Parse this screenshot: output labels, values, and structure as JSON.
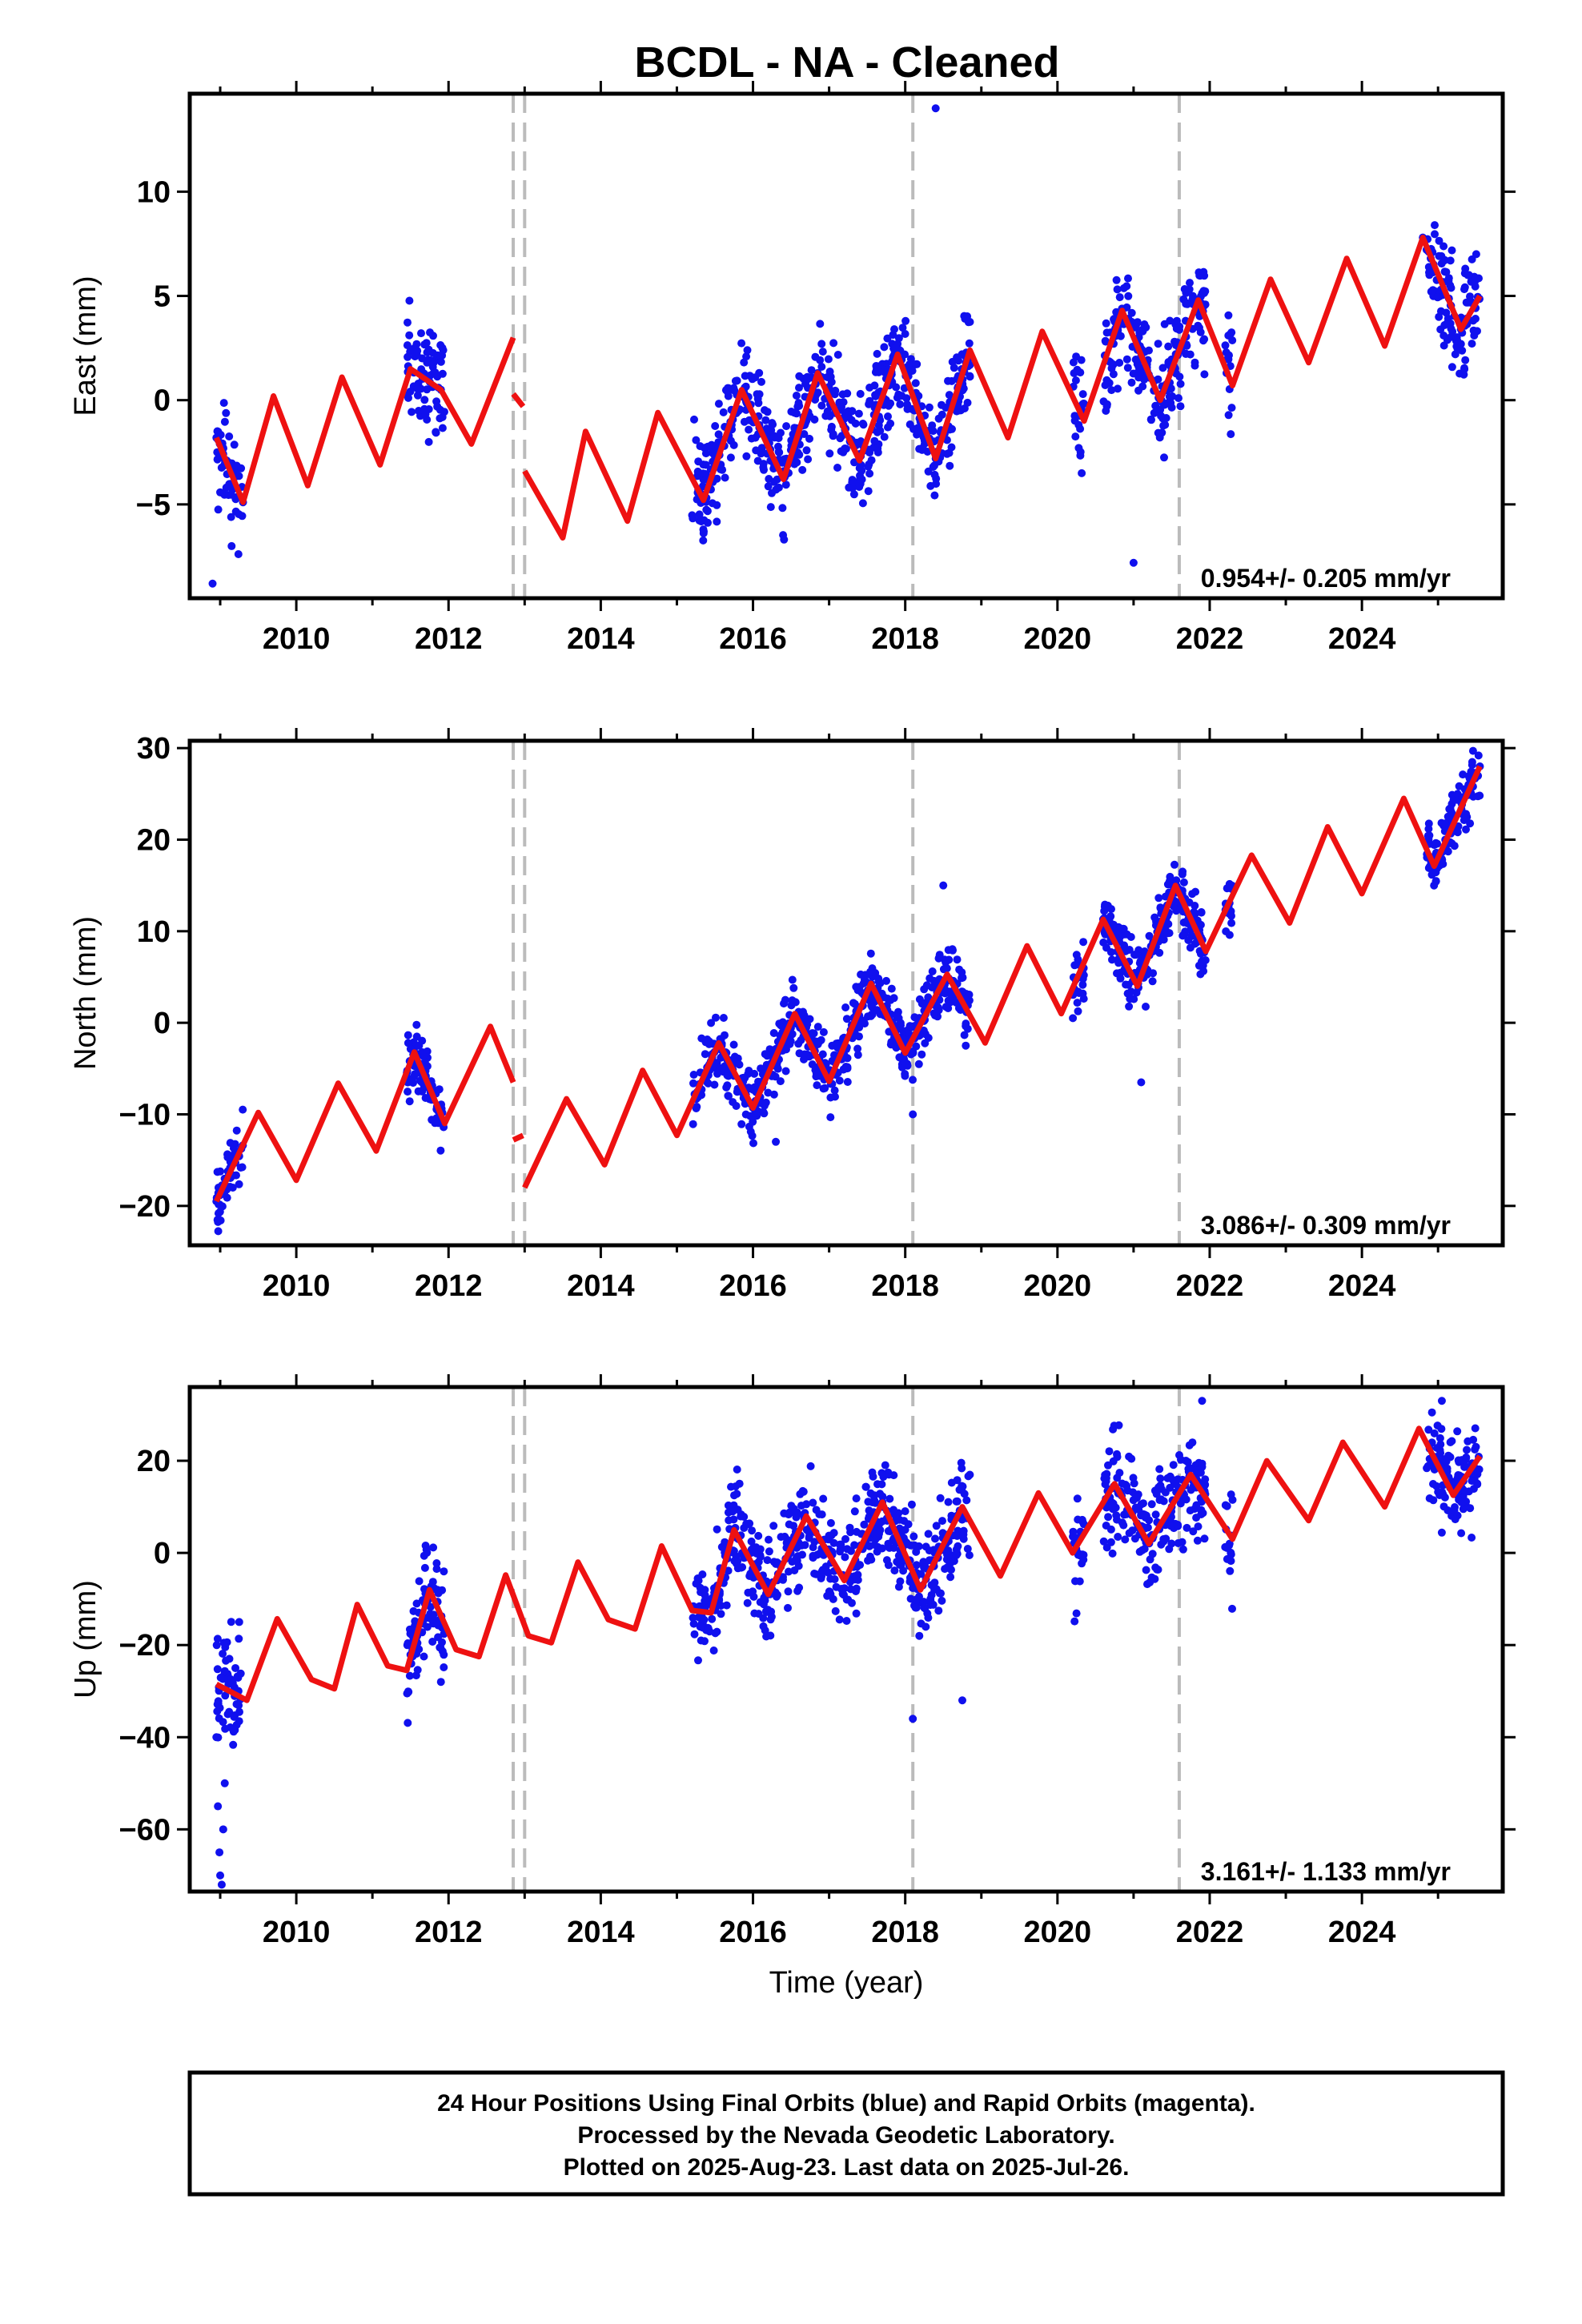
{
  "title": "BCDL  - NA - Cleaned",
  "footer": {
    "lines": [
      "24 Hour Positions Using Final Orbits (blue) and Rapid Orbits (magenta).",
      "Processed by the Nevada Geodetic Laboratory.",
      "Plotted on 2025-Aug-23. Last data on 2025-Jul-26."
    ]
  },
  "colors": {
    "data": "#1010ee",
    "model": "#ee1111",
    "events": "#bbbbbb",
    "frame": "#000000"
  },
  "chart_data": [
    {
      "type": "scatter",
      "ylabel": "East (mm)",
      "xlabel": "",
      "rate": "0.954+/- 0.205 mm/yr",
      "xlim": [
        2008.6,
        2025.85
      ],
      "ylim": [
        -9.5,
        14.7
      ],
      "xticks": [
        2010,
        2012,
        2014,
        2016,
        2018,
        2020,
        2022,
        2024
      ],
      "yticks": [
        10,
        5,
        0,
        -5
      ],
      "events": [
        2012.85,
        2013.0,
        2018.1,
        2021.6
      ],
      "seed": 11,
      "noise": 1.2,
      "outliers": [
        [
          2018.4,
          14.0
        ],
        [
          2021.0,
          -7.8
        ],
        [
          2008.9,
          -8.8
        ],
        [
          2009.15,
          -7.0
        ]
      ],
      "segments": [
        {
          "x": [
            2008.95,
            2009.3,
            2009.7,
            2010.15,
            2010.6,
            2011.1,
            2011.5,
            2011.9,
            2012.3,
            2012.85
          ],
          "y": [
            -1.8,
            -4.9,
            0.2,
            -4.1,
            1.1,
            -3.1,
            1.5,
            0.5,
            -2.1,
            3.0
          ]
        },
        {
          "x": [
            2012.85,
            2012.98
          ],
          "y": [
            0.3,
            -0.3
          ]
        },
        {
          "x": [
            2013.0,
            2013.5,
            2013.8,
            2014.35,
            2014.75,
            2015.35,
            2015.85,
            2016.4,
            2016.85,
            2017.4,
            2017.9,
            2018.4,
            2018.85,
            2019.35,
            2019.8,
            2020.35,
            2020.85,
            2021.35,
            2021.85,
            2022.3,
            2022.8,
            2023.3,
            2023.8,
            2024.3,
            2024.8,
            2025.3,
            2025.55
          ],
          "y": [
            -3.4,
            -6.6,
            -1.5,
            -5.8,
            -0.6,
            -4.8,
            0.5,
            -3.8,
            1.3,
            -2.9,
            2.2,
            -2.8,
            2.4,
            -1.8,
            3.3,
            -1.0,
            4.3,
            0.0,
            4.8,
            0.7,
            5.8,
            1.8,
            6.8,
            2.6,
            7.8,
            3.4,
            5.0
          ]
        }
      ],
      "data_spans": [
        [
          2008.95,
          2009.3
        ],
        [
          2011.45,
          2011.95
        ],
        [
          2015.2,
          2018.85
        ],
        [
          2020.2,
          2020.35
        ],
        [
          2020.6,
          2021.95
        ],
        [
          2022.2,
          2022.3
        ],
        [
          2024.85,
          2025.55
        ]
      ],
      "mark_points": [
        {
          "x": 2008.95,
          "y": -1.8
        },
        {
          "x": 2009.3,
          "y": -4.9
        },
        {
          "x": 2011.9,
          "y": 0.5
        },
        {
          "x": 2015.35,
          "y": -4.8
        },
        {
          "x": 2016.85,
          "y": 1.3
        },
        {
          "x": 2018.4,
          "y": -2.8
        },
        {
          "x": 2020.85,
          "y": 4.3
        },
        {
          "x": 2021.35,
          "y": 0.0
        },
        {
          "x": 2024.8,
          "y": 7.8
        },
        {
          "x": 2025.3,
          "y": 3.4
        }
      ]
    },
    {
      "type": "scatter",
      "ylabel": "North (mm)",
      "xlabel": "",
      "rate": "3.086+/- 0.309 mm/yr",
      "xlim": [
        2008.6,
        2025.85
      ],
      "ylim": [
        -24.3,
        30.8
      ],
      "xticks": [
        2010,
        2012,
        2014,
        2016,
        2018,
        2020,
        2022,
        2024
      ],
      "yticks": [
        30,
        20,
        10,
        0,
        -10,
        -20
      ],
      "events": [
        2012.85,
        2013.0,
        2018.1,
        2021.6
      ],
      "seed": 23,
      "noise": 1.8,
      "outliers": [
        [
          2018.5,
          15.0
        ],
        [
          2018.1,
          -10.0
        ],
        [
          2021.1,
          -6.5
        ],
        [
          2016.3,
          -13.0
        ]
      ],
      "segments": [
        {
          "x": [
            2008.95,
            2009.5,
            2010.0,
            2010.55,
            2011.05,
            2011.55,
            2011.95,
            2012.55,
            2012.85
          ],
          "y": [
            -19.5,
            -9.8,
            -17.2,
            -6.6,
            -14.0,
            -3.2,
            -11.0,
            -0.4,
            -6.5
          ]
        },
        {
          "x": [
            2012.85,
            2012.98
          ],
          "y": [
            -12.8,
            -12.3
          ]
        },
        {
          "x": [
            2013.0,
            2013.55,
            2014.05,
            2014.55,
            2015.0,
            2015.55,
            2016.0,
            2016.55,
            2017.0,
            2017.55,
            2018.0,
            2018.55,
            2019.05,
            2019.6,
            2020.05,
            2020.6,
            2021.05,
            2021.55,
            2021.95,
            2022.55,
            2023.05,
            2023.55,
            2024.0,
            2024.55,
            2024.95,
            2025.55
          ],
          "y": [
            -18.0,
            -8.3,
            -15.5,
            -5.2,
            -12.3,
            -2.2,
            -9.3,
            1.0,
            -6.4,
            4.3,
            -3.3,
            5.3,
            -2.2,
            8.4,
            1.0,
            11.3,
            4.0,
            15.0,
            7.8,
            18.3,
            10.9,
            21.4,
            14.1,
            24.5,
            17.1,
            28.0
          ]
        }
      ],
      "data_spans": [
        [
          2008.95,
          2009.3
        ],
        [
          2011.45,
          2011.95
        ],
        [
          2015.2,
          2018.85
        ],
        [
          2020.2,
          2020.35
        ],
        [
          2020.6,
          2021.95
        ],
        [
          2022.2,
          2022.3
        ],
        [
          2024.85,
          2025.55
        ]
      ],
      "mark_points": [
        {
          "x": 2008.95,
          "y": -19.5
        },
        {
          "x": 2011.55,
          "y": -3.2
        },
        {
          "x": 2016.0,
          "y": -9.3
        },
        {
          "x": 2017.55,
          "y": 4.3
        },
        {
          "x": 2020.6,
          "y": 11.3
        },
        {
          "x": 2021.55,
          "y": 15.0
        },
        {
          "x": 2024.95,
          "y": 17.1
        },
        {
          "x": 2025.55,
          "y": 28.0
        }
      ]
    },
    {
      "type": "scatter",
      "ylabel": "Up (mm)",
      "xlabel": "Time (year)",
      "rate": "3.161+/- 1.133 mm/yr",
      "xlim": [
        2008.6,
        2025.85
      ],
      "ylim": [
        -73.5,
        36.0
      ],
      "xticks": [
        2010,
        2012,
        2014,
        2016,
        2018,
        2020,
        2022,
        2024
      ],
      "yticks": [
        20,
        0,
        -20,
        -40,
        -60
      ],
      "events": [
        2012.85,
        2013.0,
        2018.1,
        2021.6
      ],
      "seed": 37,
      "noise": 5.5,
      "outliers": [
        [
          2018.1,
          -36.0
        ],
        [
          2018.75,
          -32.0
        ],
        [
          2025.05,
          33.0
        ],
        [
          2021.9,
          33.0
        ],
        [
          2011.9,
          -28.0
        ]
      ],
      "segments": [
        {
          "x": [
            2008.95,
            2009.35,
            2009.75,
            2010.2,
            2010.5,
            2010.8,
            2011.2,
            2011.45,
            2011.75,
            2012.1,
            2012.4,
            2012.75,
            2013.05,
            2013.35,
            2013.7,
            2014.1,
            2014.45,
            2014.8,
            2015.2,
            2015.45,
            2015.75,
            2016.2,
            2016.7,
            2017.2,
            2017.7,
            2018.2,
            2018.75,
            2019.25,
            2019.75,
            2020.2,
            2020.75,
            2021.2,
            2021.75,
            2022.3,
            2022.75,
            2023.3,
            2023.75,
            2024.3,
            2024.75,
            2025.2,
            2025.55
          ],
          "y": [
            -28.5,
            -32.0,
            -14.3,
            -27.5,
            -29.5,
            -11.2,
            -24.5,
            -25.5,
            -8.0,
            -21.0,
            -22.5,
            -4.8,
            -18.0,
            -19.5,
            -2.0,
            -14.5,
            -16.5,
            1.5,
            -12.5,
            -13.0,
            5.0,
            -9.0,
            8.0,
            -6.0,
            11.0,
            -8.0,
            10.0,
            -5.0,
            13.0,
            0.0,
            15.0,
            2.0,
            17.0,
            3.0,
            20.0,
            7.0,
            24.0,
            10.0,
            27.0,
            12.5,
            21.0
          ]
        }
      ],
      "data_spans": [
        [
          2008.95,
          2009.3
        ],
        [
          2011.45,
          2011.95
        ],
        [
          2015.2,
          2018.85
        ],
        [
          2020.2,
          2020.35
        ],
        [
          2020.6,
          2021.95
        ],
        [
          2022.2,
          2022.3
        ],
        [
          2024.85,
          2025.55
        ]
      ],
      "mark_points": [
        {
          "x": 2008.95,
          "y": -40.0
        },
        {
          "x": 2008.97,
          "y": -55.0
        },
        {
          "x": 2008.99,
          "y": -65.0
        },
        {
          "x": 2009.0,
          "y": -70.0
        },
        {
          "x": 2009.02,
          "y": -72.0
        },
        {
          "x": 2009.04,
          "y": -60.0
        },
        {
          "x": 2009.06,
          "y": -50.0
        },
        {
          "x": 2009.1,
          "y": -35.0
        },
        {
          "x": 2009.2,
          "y": -25.0
        },
        {
          "x": 2009.25,
          "y": -15.0
        },
        {
          "x": 2015.75,
          "y": 5.0
        },
        {
          "x": 2017.7,
          "y": 11.0
        }
      ]
    }
  ]
}
